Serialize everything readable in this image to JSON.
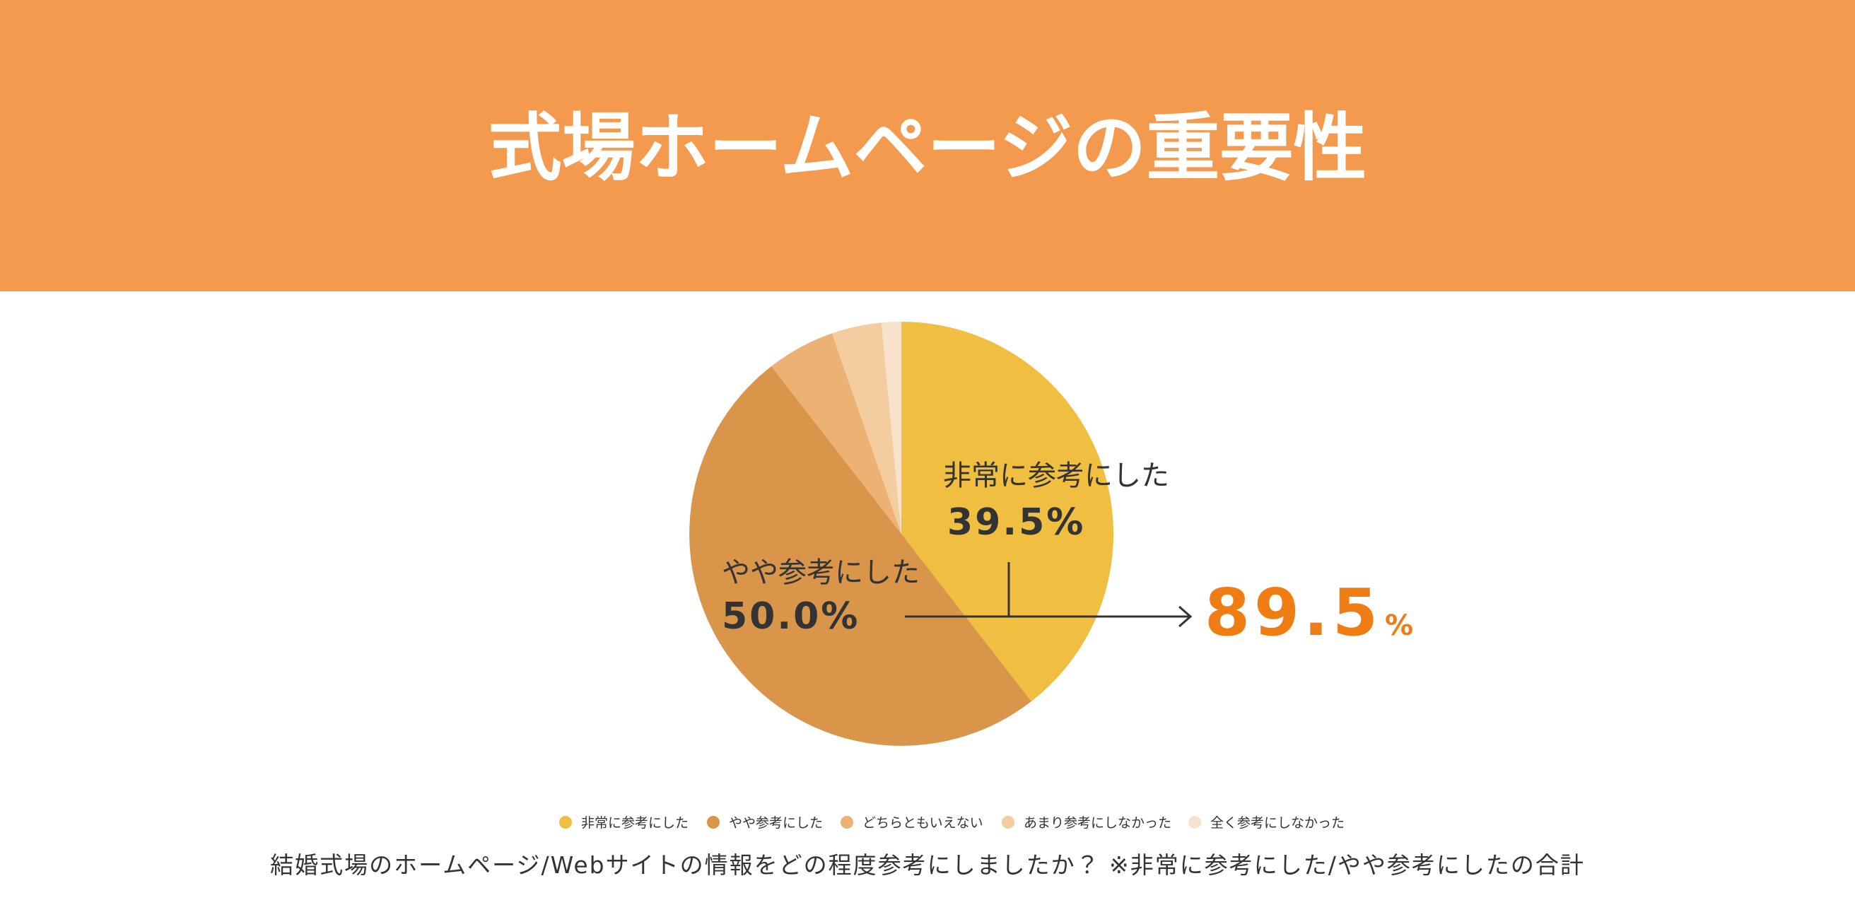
{
  "chart_data": {
    "type": "pie",
    "title": "式場ホームページの重要性",
    "categories": [
      "非常に参考にした",
      "やや参考にした",
      "どちらともいえない",
      "あまり参考にしなかった",
      "全く参考にしなかった"
    ],
    "values": [
      39.5,
      50.0,
      5.2,
      3.8,
      1.5
    ],
    "value_labels": [
      "39.5%",
      "50.0%",
      null,
      null,
      null
    ],
    "colors": [
      "#f0bf42",
      "#d9954a",
      "#ebb273",
      "#f3cc9f",
      "#f9e2cc"
    ],
    "annotation": {
      "value": "89.5",
      "unit": "%"
    },
    "caption": "結婚式場のホームページ/Webサイトの情報をどの程度参考にしましたか？ ※非常に参考にした/やや参考にしたの合計"
  }
}
